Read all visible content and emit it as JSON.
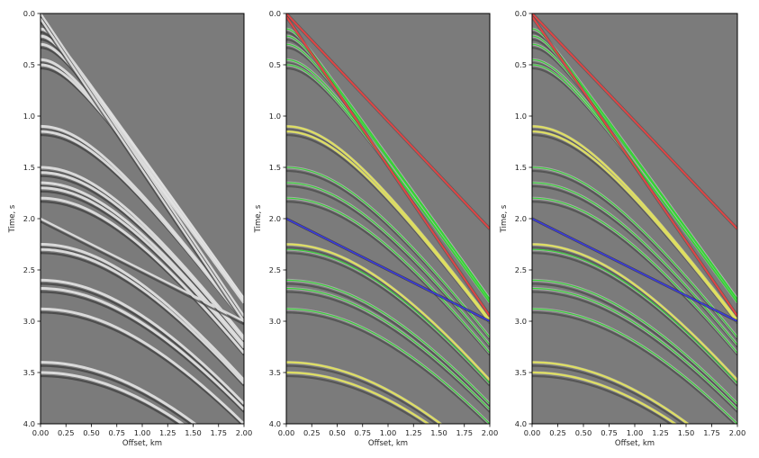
{
  "chart_data": [
    {
      "type": "scatter",
      "panel": "left",
      "xlabel": "Offset, km",
      "ylabel": "Time, s",
      "xlim": [
        0,
        2
      ],
      "ylim": [
        4,
        0
      ],
      "x_ticks": [
        "0.00",
        "0.25",
        "0.50",
        "0.75",
        "1.00",
        "1.25",
        "1.50",
        "1.75",
        "2.00"
      ],
      "y_ticks": [
        "0.0",
        "0.5",
        "1.0",
        "1.5",
        "2.0",
        "2.5",
        "3.0",
        "3.5",
        "4.0"
      ],
      "grid": false,
      "legend": "none",
      "events": {
        "hyperbolic_primary_t0": [
          0.15,
          0.22,
          0.3,
          0.45,
          0.5,
          1.1,
          1.15,
          1.5,
          1.55,
          1.65,
          1.7,
          1.8,
          2.25,
          2.3,
          2.6,
          2.68,
          2.88,
          3.4,
          3.5
        ],
        "linear": [
          {
            "t0": 0.0,
            "t_at_2km": 2.95
          },
          {
            "t0": 0.05,
            "t_at_2km": 3.0
          },
          {
            "t0": 2.0,
            "t_at_2km": 3.0
          }
        ]
      }
    },
    {
      "type": "scatter",
      "panel": "middle",
      "xlabel": "Offset, km",
      "ylabel": "Time, s",
      "xlim": [
        0,
        2
      ],
      "ylim": [
        4,
        0
      ],
      "x_ticks": [
        "0.00",
        "0.25",
        "0.50",
        "0.75",
        "1.00",
        "1.25",
        "1.50",
        "1.75",
        "2.00"
      ],
      "y_ticks": [
        "0.0",
        "0.5",
        "1.0",
        "1.5",
        "2.0",
        "2.5",
        "3.0",
        "3.5",
        "4.0"
      ],
      "grid": false,
      "legend": "none",
      "colors": {
        "green": "#35d435",
        "yellow": "#e3e35a",
        "red": "#e04545",
        "blue": "#3b3bd8"
      },
      "picks": {
        "green_t0": [
          0.15,
          0.22,
          0.3,
          0.45,
          0.5,
          1.5,
          1.65,
          1.8,
          2.3,
          2.6,
          2.68,
          2.88
        ],
        "yellow_t0": [
          1.1,
          1.15,
          2.25,
          3.4,
          3.5
        ],
        "red_linear": [
          {
            "t0": 0.0,
            "t_at_2km": 2.1
          },
          {
            "t0": 0.03,
            "t_at_2km": 2.95
          }
        ],
        "blue_linear": [
          {
            "t0": 2.0,
            "t_at_2km": 3.0
          }
        ]
      }
    },
    {
      "type": "scatter",
      "panel": "right",
      "xlabel": "Offset, km",
      "ylabel": "Time, s",
      "xlim": [
        0,
        2
      ],
      "ylim": [
        4,
        0
      ],
      "x_ticks": [
        "0.00",
        "0.25",
        "0.50",
        "0.75",
        "1.00",
        "1.25",
        "1.50",
        "1.75",
        "2.00"
      ],
      "y_ticks": [
        "0.0",
        "0.5",
        "1.0",
        "1.5",
        "2.0",
        "2.5",
        "3.0",
        "3.5",
        "4.0"
      ],
      "grid": false,
      "legend": "none",
      "colors": {
        "green": "#35d435",
        "yellow": "#e3e35a",
        "red": "#e04545",
        "blue": "#3b3bd8"
      },
      "picks": {
        "green_t0": [
          0.15,
          0.22,
          0.3,
          0.45,
          0.5,
          1.5,
          1.65,
          1.8,
          2.3,
          2.6,
          2.68,
          2.88
        ],
        "yellow_t0": [
          1.1,
          1.15,
          2.25,
          3.4,
          3.5
        ],
        "red_linear": [
          {
            "t0": 0.0,
            "t_at_2km": 2.1
          },
          {
            "t0": 0.03,
            "t_at_2km": 2.95
          }
        ],
        "blue_linear": [
          {
            "t0": 2.0,
            "t_at_2km": 3.0
          }
        ]
      }
    }
  ]
}
